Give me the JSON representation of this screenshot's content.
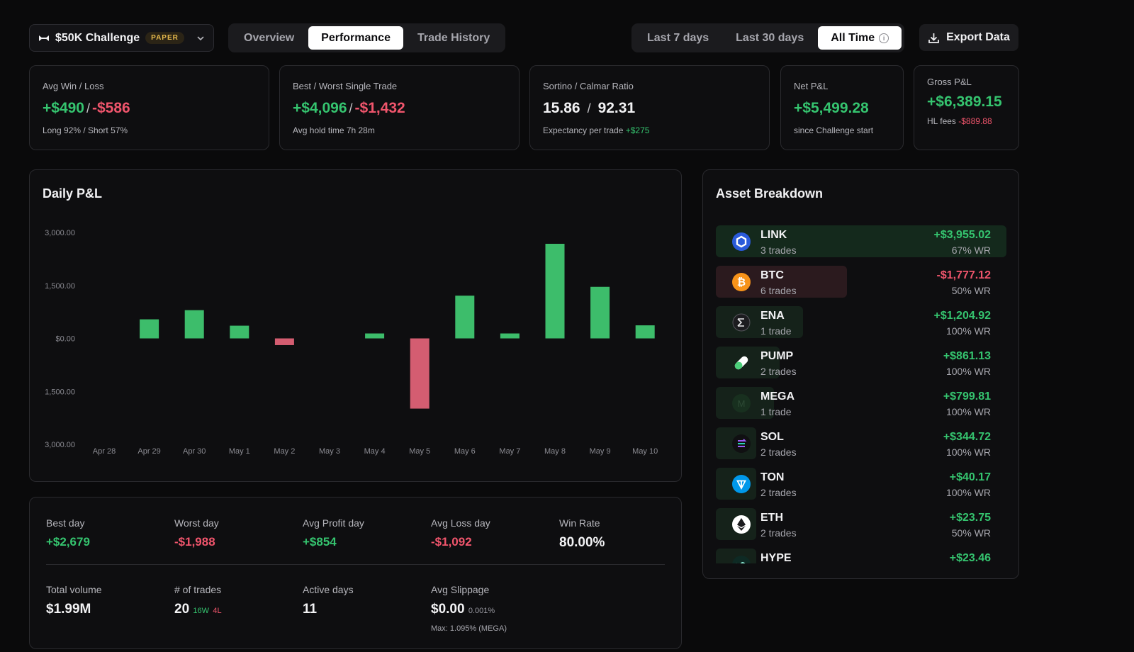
{
  "account": {
    "name": "$50K Challenge",
    "badge": "PAPER"
  },
  "tabs": [
    {
      "label": "Overview",
      "active": false
    },
    {
      "label": "Performance",
      "active": true
    },
    {
      "label": "Trade History",
      "active": false
    }
  ],
  "ranges": [
    {
      "label": "Last 7 days",
      "active": false
    },
    {
      "label": "Last 30 days",
      "active": false
    },
    {
      "label": "All Time",
      "active": true
    }
  ],
  "export_label": "Export Data",
  "cards": {
    "avg": {
      "label": "Avg Win / Loss",
      "win": "+$490",
      "sep": "/",
      "loss": "-$586",
      "sub": "Long 92% / Short 57%"
    },
    "best": {
      "label": "Best / Worst Single Trade",
      "best": "+$4,096",
      "sep": "/",
      "worst": "-$1,432",
      "sub": "Avg hold time 7h 28m"
    },
    "ratio": {
      "label": "Sortino / Calmar Ratio",
      "sortino": "15.86",
      "sep": "/",
      "calmar": "92.31",
      "sub": "Expectancy per trade",
      "sub_value": "+$275"
    },
    "net": {
      "label": "Net P&L",
      "value": "+$5,499.28",
      "sub": "since Challenge start"
    },
    "gross": {
      "label": "Gross P&L",
      "value": "+$6,389.15",
      "fees_label": "HL fees",
      "fees_value": "-$889.88"
    }
  },
  "chart_title": "Daily P&L",
  "chart_data": {
    "type": "bar",
    "categories": [
      "Apr 28",
      "Apr 29",
      "Apr 30",
      "May 1",
      "May 2",
      "May 3",
      "May 4",
      "May 5",
      "May 6",
      "May 7",
      "May 8",
      "May 9",
      "May 10"
    ],
    "values": [
      0,
      540,
      800,
      360,
      -190,
      0,
      140,
      -1988,
      1210,
      140,
      2679,
      1460,
      370
    ],
    "y_tick_labels": [
      "3,000.00",
      "1,500.00",
      "$0.00",
      "1,500.00",
      "3,000.00"
    ],
    "ylim": [
      -3000,
      3000
    ],
    "grid": false,
    "colors": {
      "positive": "#3dbd6b",
      "negative": "#d45d71"
    }
  },
  "stats": {
    "best_day": {
      "label": "Best day",
      "value": "+$2,679"
    },
    "worst_day": {
      "label": "Worst day",
      "value": "-$1,988"
    },
    "avg_profit": {
      "label": "Avg Profit day",
      "value": "+$854"
    },
    "avg_loss": {
      "label": "Avg Loss day",
      "value": "-$1,092"
    },
    "win_rate": {
      "label": "Win Rate",
      "value": "80.00%"
    },
    "volume": {
      "label": "Total volume",
      "value": "$1.99M"
    },
    "trades": {
      "label": "# of trades",
      "value": "20",
      "wins": "16W",
      "losses": "4L"
    },
    "active_days": {
      "label": "Active days",
      "value": "11"
    },
    "slippage": {
      "label": "Avg Slippage",
      "value": "$0.00",
      "pct": "0.001%",
      "note": "Max: 1.095% (MEGA)"
    }
  },
  "assets_title": "Asset Breakdown",
  "assets": [
    {
      "symbol": "LINK",
      "trades": "3 trades",
      "pnl": "+$3,955.02",
      "wr": "67% WR",
      "positive": true,
      "bar": 1.0,
      "icon": "chainlink-icon",
      "icon_color": "#2a5ada"
    },
    {
      "symbol": "BTC",
      "trades": "6 trades",
      "pnl": "-$1,777.12",
      "wr": "50% WR",
      "positive": false,
      "bar": 0.45,
      "icon": "bitcoin-icon",
      "icon_color": "#f7931a"
    },
    {
      "symbol": "ENA",
      "trades": "1 trade",
      "pnl": "+$1,204.92",
      "wr": "100% WR",
      "positive": true,
      "bar": 0.3,
      "icon": "ethena-icon",
      "icon_color": "#1c1c1f"
    },
    {
      "symbol": "PUMP",
      "trades": "2 trades",
      "pnl": "+$861.13",
      "wr": "100% WR",
      "positive": true,
      "bar": 0.22,
      "icon": "pill-icon",
      "icon_color": "#ffffff"
    },
    {
      "symbol": "MEGA",
      "trades": "1 trade",
      "pnl": "+$799.81",
      "wr": "100% WR",
      "positive": true,
      "bar": 0.2,
      "icon": "mega-icon",
      "icon_color": "#18301f"
    },
    {
      "symbol": "SOL",
      "trades": "2 trades",
      "pnl": "+$344.72",
      "wr": "100% WR",
      "positive": true,
      "bar": 0.09,
      "icon": "solana-icon",
      "icon_color": "#101012"
    },
    {
      "symbol": "TON",
      "trades": "2 trades",
      "pnl": "+$40.17",
      "wr": "100% WR",
      "positive": true,
      "bar": 0.09,
      "icon": "toncoin-icon",
      "icon_color": "#0098ea"
    },
    {
      "symbol": "ETH",
      "trades": "2 trades",
      "pnl": "+$23.75",
      "wr": "50% WR",
      "positive": true,
      "bar": 0.09,
      "icon": "ethereum-icon",
      "icon_color": "#ffffff"
    },
    {
      "symbol": "HYPE",
      "trades": "",
      "pnl": "+$23.46",
      "wr": "",
      "positive": true,
      "bar": 0.09,
      "icon": "hyperliquid-icon",
      "icon_color": "#97fce4"
    }
  ]
}
